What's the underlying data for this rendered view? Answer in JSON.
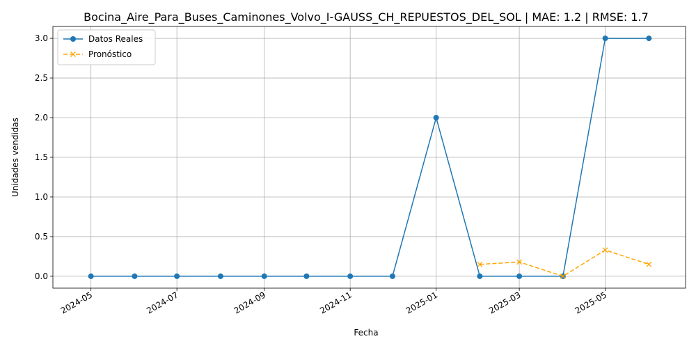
{
  "chart_data": {
    "type": "line",
    "title": "Bocina_Aire_Para_Buses_Caminones_Volvo_I-GAUSS_CH_REPUESTOS_DEL_SOL | MAE: 1.2 | RMSE: 1.7",
    "xlabel": "Fecha",
    "ylabel": "Unidades vendidas",
    "xlim": [
      "2024-04-04",
      "2025-06-27"
    ],
    "ylim": [
      -0.15,
      3.15
    ],
    "x_ticks": [
      "2024-05",
      "2024-07",
      "2024-09",
      "2024-11",
      "2025-01",
      "2025-03",
      "2025-05"
    ],
    "y_ticks": [
      "0.0",
      "0.5",
      "1.0",
      "1.5",
      "2.0",
      "2.5",
      "3.0"
    ],
    "grid": true,
    "legend_position": "upper-left",
    "series": [
      {
        "name": "Datos Reales",
        "color": "#1f77b4",
        "marker": "circle",
        "line_style": "solid",
        "x": [
          "2024-05-01",
          "2024-06-01",
          "2024-07-01",
          "2024-08-01",
          "2024-09-01",
          "2024-10-01",
          "2024-11-01",
          "2024-12-01",
          "2025-01-01",
          "2025-02-01",
          "2025-03-01",
          "2025-04-01",
          "2025-05-01",
          "2025-06-01"
        ],
        "values": [
          0,
          0,
          0,
          0,
          0,
          0,
          0,
          0,
          2,
          0,
          0,
          0,
          3,
          3
        ]
      },
      {
        "name": "Pronóstico",
        "color": "#ffa500",
        "marker": "x",
        "line_style": "dashed",
        "x": [
          "2025-02-01",
          "2025-03-01",
          "2025-04-01",
          "2025-05-01",
          "2025-06-01"
        ],
        "values": [
          0.15,
          0.18,
          0.0,
          0.33,
          0.15
        ]
      }
    ]
  }
}
